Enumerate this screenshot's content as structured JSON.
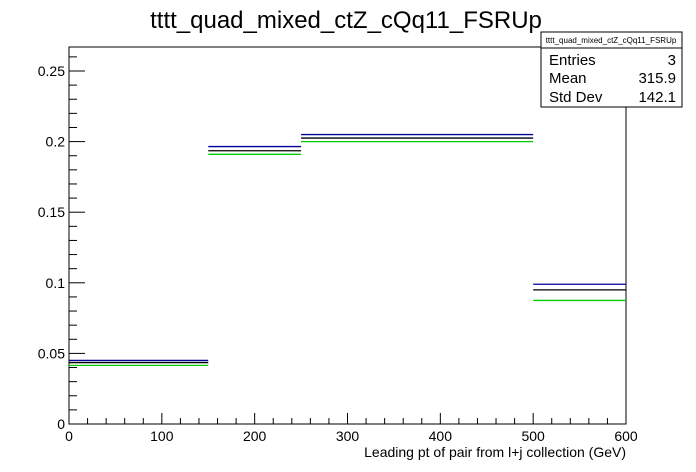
{
  "chart_data": {
    "type": "histogram",
    "title": "tttt_quad_mixed_ctZ_cQq11_FSRUp",
    "xlabel": "Leading pt of pair from l+j collection (GeV)",
    "ylabel": "",
    "xlim": [
      0,
      600
    ],
    "ylim": [
      0,
      0.267
    ],
    "x_major_ticks": [
      0,
      100,
      200,
      300,
      400,
      500,
      600
    ],
    "x_tick_labels": [
      "0",
      "100",
      "200",
      "300",
      "400",
      "500",
      "600"
    ],
    "y_major_ticks": [
      0,
      0.05,
      0.1,
      0.15,
      0.2,
      0.25
    ],
    "y_tick_labels": [
      "0",
      "0.05",
      "0.1",
      "0.15",
      "0.2",
      "0.25"
    ],
    "bin_edges": [
      0,
      150,
      250,
      500,
      600
    ],
    "series": [
      {
        "color": "#000099",
        "values": [
          0.045,
          0.1965,
          0.205,
          0.099
        ]
      },
      {
        "color": "#000000",
        "values": [
          0.0435,
          0.1935,
          0.2025,
          0.095
        ]
      },
      {
        "color": "#00cc00",
        "values": [
          0.0415,
          0.191,
          0.2,
          0.0875
        ]
      }
    ],
    "stats_box": {
      "title": "tttt_quad_mixed_ctZ_cQq11_FSRUp",
      "rows": [
        {
          "label": "Entries",
          "value": "3"
        },
        {
          "label": "Mean",
          "value": "315.9"
        },
        {
          "label": "Std Dev",
          "value": "142.1"
        }
      ]
    }
  }
}
